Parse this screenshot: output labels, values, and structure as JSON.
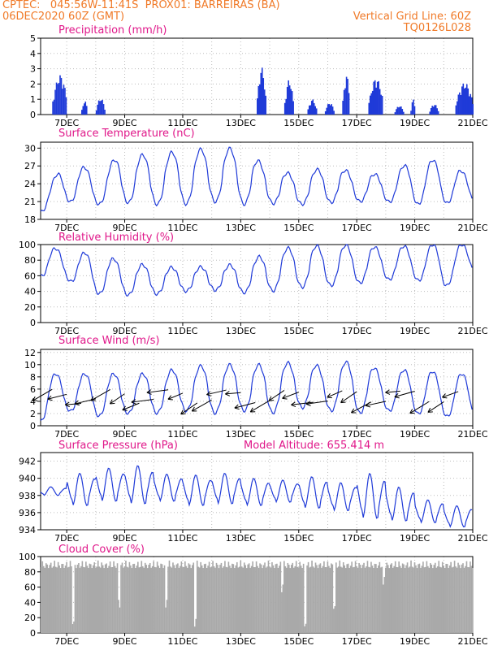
{
  "header": {
    "line1_left": "CPTEC:   045:56W-11:41S  PROX01: BARREIRAS (BA)",
    "line2_left": "06DEC2020 60Z (GMT)",
    "line2_right": "Vertical Grid Line: 60Z",
    "line3_right": "TQ0126L028"
  },
  "colors": {
    "header": "#f07a28",
    "title": "#e0188a",
    "series": "#1f3ad8",
    "cloud": "#a9a9a9",
    "wind_arrow": "#000000"
  },
  "x_axis": {
    "ticks": [
      "7DEC",
      "9DEC",
      "11DEC",
      "13DEC",
      "15DEC",
      "17DEC",
      "19DEC",
      "21DEC"
    ],
    "tick_days": [
      7,
      9,
      11,
      13,
      15,
      17,
      19,
      21
    ],
    "range_days": [
      6.1,
      21.0
    ]
  },
  "chart_data": [
    {
      "type": "bar",
      "title": "Precipitation (mm/h)",
      "ylim": [
        0,
        5
      ],
      "yticks": [
        "0",
        "1",
        "2",
        "3",
        "4",
        "5"
      ],
      "ytick_values": [
        0,
        1,
        2,
        3,
        4,
        5
      ],
      "grid": true,
      "bursts": [
        {
          "start": 6.5,
          "end": 7.0,
          "peak": 2.6
        },
        {
          "start": 7.5,
          "end": 7.7,
          "peak": 0.9
        },
        {
          "start": 8.0,
          "end": 8.3,
          "peak": 1.1
        },
        {
          "start": 13.55,
          "end": 13.85,
          "peak": 3.1
        },
        {
          "start": 14.5,
          "end": 14.8,
          "peak": 2.3
        },
        {
          "start": 15.3,
          "end": 15.6,
          "peak": 1.0
        },
        {
          "start": 15.9,
          "end": 16.2,
          "peak": 0.8
        },
        {
          "start": 16.5,
          "end": 16.75,
          "peak": 2.6
        },
        {
          "start": 17.4,
          "end": 17.9,
          "peak": 2.4
        },
        {
          "start": 18.3,
          "end": 18.6,
          "peak": 0.6
        },
        {
          "start": 18.85,
          "end": 19.0,
          "peak": 1.0
        },
        {
          "start": 19.5,
          "end": 19.8,
          "peak": 0.7
        },
        {
          "start": 20.4,
          "end": 21.0,
          "peak": 2.1
        }
      ]
    },
    {
      "type": "line",
      "title": "Surface Temperature (nC)",
      "ylim": [
        18,
        31
      ],
      "yticks": [
        "18",
        "21",
        "24",
        "27",
        "30"
      ],
      "ytick_values": [
        18,
        21,
        24,
        27,
        30
      ],
      "grid": true,
      "daily_min": [
        19.0,
        21.0,
        20.5,
        20.8,
        20.5,
        20.5,
        21.0,
        20.5,
        20.7,
        20.5,
        20.8,
        21.0,
        21.0,
        20.5,
        20.7,
        20.8
      ],
      "daily_max": [
        21.0,
        28.0,
        26.0,
        29.2,
        28.7,
        29.7,
        29.9,
        30.0,
        26.5,
        25.4,
        27.0,
        25.8,
        25.5,
        28.0,
        28.0,
        25.0
      ]
    },
    {
      "type": "line",
      "title": "Relative Humidity (%)",
      "ylim": [
        0,
        100
      ],
      "yticks": [
        "0",
        "20",
        "40",
        "60",
        "80",
        "100"
      ],
      "ytick_values": [
        0,
        20,
        40,
        60,
        80,
        100
      ],
      "grid": true,
      "daily_min": [
        60,
        55,
        37,
        35,
        36,
        40,
        42,
        38,
        40,
        45,
        47,
        50,
        55,
        55,
        45,
        65
      ],
      "daily_max": [
        100,
        92,
        88,
        78,
        72,
        70,
        72,
        75,
        90,
        99,
        98,
        100,
        95,
        100,
        100,
        100
      ]
    },
    {
      "type": "line",
      "title": "Surface Wind (m/s)",
      "ylim": [
        0,
        12.5
      ],
      "yticks": [
        "0",
        "2",
        "4",
        "6",
        "8",
        "10",
        "12"
      ],
      "ytick_values": [
        0,
        2,
        4,
        6,
        8,
        10,
        12
      ],
      "grid": true,
      "daily_min": [
        0.5,
        2.5,
        1.5,
        2.0,
        2.0,
        2.5,
        2.0,
        2.5,
        2.0,
        3.0,
        2.5,
        2.0,
        2.5,
        2.0,
        1.5,
        1.5
      ],
      "daily_max": [
        8.5,
        8.5,
        8.5,
        8.5,
        8.5,
        9.5,
        10.0,
        10.0,
        10.0,
        10.5,
        9.5,
        11.0,
        8.5,
        9.5,
        8.5,
        8.5
      ],
      "arrows_per_day": 2,
      "arrow_direction": "from east-northeast"
    },
    {
      "type": "line",
      "title": "Surface Pressure (hPa)",
      "annotation": "Model Altitude: 655.414 m",
      "ylim": [
        934,
        943
      ],
      "yticks": [
        "934",
        "936",
        "938",
        "940",
        "942"
      ],
      "ytick_values": [
        934,
        936,
        938,
        940,
        942
      ],
      "grid": true,
      "daily_peak": [
        939.0,
        940.6,
        941.2,
        941.5,
        940.5,
        940.4,
        940.6,
        940.0,
        939.8,
        940.2,
        939.5,
        940.6,
        939.0,
        937.5,
        936.8,
        937.0
      ],
      "daily_low": [
        938.0,
        936.8,
        937.3,
        937.0,
        937.3,
        936.8,
        937.0,
        936.8,
        937.2,
        936.5,
        936.2,
        935.3,
        935.0,
        934.8,
        934.3,
        934.0
      ]
    },
    {
      "type": "bar",
      "title": "Cloud Cover (%)",
      "ylim": [
        0,
        100
      ],
      "yticks": [
        "0",
        "20",
        "40",
        "60",
        "80",
        "100"
      ],
      "ytick_values": [
        0,
        20,
        40,
        60,
        80,
        100
      ],
      "grid": true,
      "typical_cover": 95,
      "dips": [
        {
          "day": 7.2,
          "value": 5
        },
        {
          "day": 8.8,
          "value": 30
        },
        {
          "day": 10.4,
          "value": 30
        },
        {
          "day": 11.4,
          "value": 5
        },
        {
          "day": 14.4,
          "value": 50
        },
        {
          "day": 15.2,
          "value": 2
        },
        {
          "day": 16.2,
          "value": 25
        },
        {
          "day": 17.9,
          "value": 60
        }
      ]
    }
  ]
}
